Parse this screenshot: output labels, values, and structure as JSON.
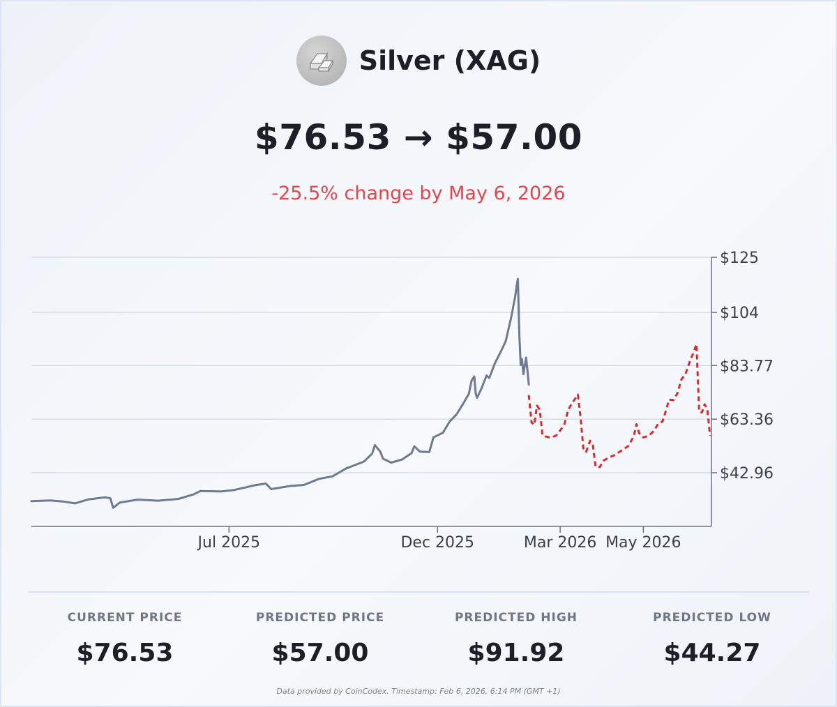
{
  "header": {
    "title": "Silver (XAG)",
    "logo_icon": "silver-bars-icon",
    "price_from": "$76.53",
    "arrow": "→",
    "price_to": "$57.00",
    "change_text": "-25.5% change by May 6, 2026"
  },
  "colors": {
    "history_line": "#6d7a8f",
    "forecast_line": "#d72a2d",
    "change_text": "#e0464b",
    "grid": "#cfd6e0"
  },
  "chart_data": {
    "type": "line",
    "title": "",
    "xlabel": "",
    "ylabel": "",
    "x_axis_ticks": [
      "Jul 2025",
      "Dec 2025",
      "Mar 2026",
      "May 2026"
    ],
    "y_axis_ticks": [
      "$125",
      "$104",
      "$83.77",
      "$63.36",
      "$42.96"
    ],
    "ylim": [
      22.5,
      125
    ],
    "grid": "horizontal",
    "y_axis_position": "right",
    "series": [
      {
        "style": "solid",
        "points": [
          [
            "2025-02-06",
            32.1
          ],
          [
            "2025-02-20",
            32.4
          ],
          [
            "2025-03-01",
            32.0
          ],
          [
            "2025-03-10",
            31.3
          ],
          [
            "2025-03-20",
            32.8
          ],
          [
            "2025-04-01",
            33.6
          ],
          [
            "2025-04-05",
            33.2
          ],
          [
            "2025-04-07",
            29.6
          ],
          [
            "2025-04-12",
            31.6
          ],
          [
            "2025-04-25",
            32.7
          ],
          [
            "2025-05-10",
            32.3
          ],
          [
            "2025-05-25",
            33.0
          ],
          [
            "2025-06-05",
            34.7
          ],
          [
            "2025-06-10",
            36.0
          ],
          [
            "2025-06-25",
            35.8
          ],
          [
            "2025-07-05",
            36.4
          ],
          [
            "2025-07-20",
            38.2
          ],
          [
            "2025-07-28",
            38.8
          ],
          [
            "2025-08-01",
            36.7
          ],
          [
            "2025-08-15",
            37.9
          ],
          [
            "2025-08-25",
            38.3
          ],
          [
            "2025-09-05",
            40.6
          ],
          [
            "2025-09-15",
            41.6
          ],
          [
            "2025-09-25",
            44.6
          ],
          [
            "2025-10-08",
            47.2
          ],
          [
            "2025-10-14",
            50.2
          ],
          [
            "2025-10-16",
            53.5
          ],
          [
            "2025-10-20",
            51.0
          ],
          [
            "2025-10-22",
            48.3
          ],
          [
            "2025-10-28",
            46.8
          ],
          [
            "2025-11-05",
            48.0
          ],
          [
            "2025-11-12",
            50.4
          ],
          [
            "2025-11-14",
            53.0
          ],
          [
            "2025-11-18",
            51.0
          ],
          [
            "2025-11-25",
            50.8
          ],
          [
            "2025-11-28",
            56.4
          ],
          [
            "2025-12-05",
            58.2
          ],
          [
            "2025-12-10",
            62.5
          ],
          [
            "2025-12-15",
            65.2
          ],
          [
            "2025-12-20",
            69.4
          ],
          [
            "2025-12-24",
            73.0
          ],
          [
            "2025-12-26",
            78.0
          ],
          [
            "2025-12-28",
            79.6
          ],
          [
            "2025-12-29",
            73.2
          ],
          [
            "2025-12-30",
            71.5
          ],
          [
            "2026-01-02",
            74.7
          ],
          [
            "2026-01-06",
            80.0
          ],
          [
            "2026-01-08",
            79.0
          ],
          [
            "2026-01-12",
            84.5
          ],
          [
            "2026-01-16",
            88.6
          ],
          [
            "2026-01-20",
            93.0
          ],
          [
            "2026-01-24",
            102.0
          ],
          [
            "2026-01-27",
            110.0
          ],
          [
            "2026-01-28",
            114.0
          ],
          [
            "2026-01-29",
            116.8
          ],
          [
            "2026-01-30",
            96.0
          ],
          [
            "2026-01-31",
            84.0
          ],
          [
            "2026-02-01",
            86.2
          ],
          [
            "2026-02-02",
            80.5
          ],
          [
            "2026-02-04",
            86.8
          ],
          [
            "2026-02-06",
            76.53
          ]
        ]
      },
      {
        "style": "dashed",
        "points": [
          [
            "2026-02-06",
            72.5
          ],
          [
            "2026-02-08",
            62.1
          ],
          [
            "2026-02-10",
            61.2
          ],
          [
            "2026-02-12",
            68.5
          ],
          [
            "2026-02-14",
            67.0
          ],
          [
            "2026-02-16",
            57.3
          ],
          [
            "2026-02-18",
            56.8
          ],
          [
            "2026-02-22",
            56.3
          ],
          [
            "2026-02-26",
            57.1
          ],
          [
            "2026-03-01",
            59.0
          ],
          [
            "2026-03-04",
            61.3
          ],
          [
            "2026-03-07",
            67.0
          ],
          [
            "2026-03-10",
            69.6
          ],
          [
            "2026-03-14",
            72.7
          ],
          [
            "2026-03-16",
            64.0
          ],
          [
            "2026-03-18",
            52.3
          ],
          [
            "2026-03-20",
            50.8
          ],
          [
            "2026-03-23",
            55.1
          ],
          [
            "2026-03-25",
            53.4
          ],
          [
            "2026-03-27",
            45.2
          ],
          [
            "2026-03-30",
            45.1
          ],
          [
            "2026-04-02",
            47.6
          ],
          [
            "2026-04-06",
            48.8
          ],
          [
            "2026-04-10",
            49.7
          ],
          [
            "2026-04-15",
            51.4
          ],
          [
            "2026-04-20",
            53.1
          ],
          [
            "2026-04-24",
            56.8
          ],
          [
            "2026-04-26",
            61.4
          ],
          [
            "2026-04-28",
            58.0
          ],
          [
            "2026-05-01",
            56.4
          ],
          [
            "2026-05-05",
            57.0
          ],
          [
            "2026-05-09",
            59.0
          ],
          [
            "2026-05-12",
            61.7
          ],
          [
            "2026-05-15",
            62.4
          ],
          [
            "2026-05-17",
            65.6
          ],
          [
            "2026-05-20",
            70.8
          ],
          [
            "2026-05-23",
            70.6
          ],
          [
            "2026-05-26",
            73.2
          ],
          [
            "2026-05-29",
            78.5
          ],
          [
            "2026-06-01",
            80.6
          ],
          [
            "2026-06-04",
            85.1
          ],
          [
            "2026-06-07",
            88.9
          ],
          [
            "2026-06-09",
            91.92
          ],
          [
            "2026-06-11",
            66.2
          ],
          [
            "2026-06-13",
            65.9
          ],
          [
            "2026-06-15",
            69.0
          ],
          [
            "2026-06-17",
            67.2
          ],
          [
            "2026-06-19",
            57.0
          ]
        ]
      }
    ]
  },
  "stats": [
    {
      "label": "CURRENT PRICE",
      "value": "$76.53"
    },
    {
      "label": "PREDICTED PRICE",
      "value": "$57.00"
    },
    {
      "label": "PREDICTED HIGH",
      "value": "$91.92"
    },
    {
      "label": "PREDICTED LOW",
      "value": "$44.27"
    }
  ],
  "footer": "Data provided by CoinCodex. Timestamp: Feb 6, 2026, 6:14 PM (GMT +1)"
}
